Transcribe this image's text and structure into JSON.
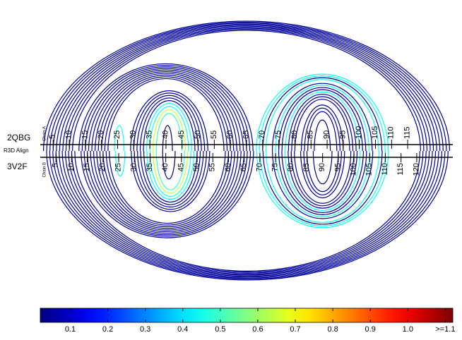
{
  "chart_data": {
    "type": "arc",
    "center_label": "R3D Align",
    "sequences": [
      {
        "name": "2QBG",
        "chain": "Chain A",
        "side": "top",
        "xlim": [
          1,
          129
        ],
        "xticks": [
          5,
          10,
          15,
          20,
          25,
          30,
          35,
          40,
          45,
          50,
          55,
          60,
          65,
          70,
          75,
          80,
          85,
          90,
          95,
          100,
          105,
          110,
          115
        ],
        "pairs": [
          [
            2,
            128,
            0.05
          ],
          [
            3,
            127,
            0.05
          ],
          [
            4,
            126,
            0.05
          ],
          [
            5,
            125,
            0.05
          ],
          [
            6,
            124,
            0.05
          ],
          [
            7,
            123,
            0.05
          ],
          [
            8,
            122,
            0.05
          ],
          [
            9,
            121,
            0.05
          ],
          [
            10,
            120,
            0.05
          ],
          [
            11,
            119,
            0.05
          ],
          [
            13,
            67,
            0.05
          ],
          [
            14,
            66,
            0.05
          ],
          [
            15,
            65,
            0.05
          ],
          [
            16,
            64,
            0.05
          ],
          [
            17,
            63,
            0.05
          ],
          [
            18,
            62,
            0.05
          ],
          [
            19,
            61,
            0.05
          ],
          [
            20,
            60,
            0.05
          ],
          [
            21,
            59,
            0.05
          ],
          [
            22,
            58,
            0.05
          ],
          [
            24,
            27,
            0.45
          ],
          [
            29,
            53,
            0.05
          ],
          [
            30,
            52,
            0.05
          ],
          [
            31,
            51,
            0.05
          ],
          [
            32,
            50,
            0.05
          ],
          [
            33,
            49,
            0.05
          ],
          [
            34,
            48,
            0.45
          ],
          [
            35,
            47,
            0.45
          ],
          [
            36,
            46,
            0.65
          ],
          [
            37,
            45,
            0.5
          ],
          [
            39,
            42,
            0.02
          ],
          [
            68,
            109,
            0.45
          ],
          [
            69,
            108,
            0.45
          ],
          [
            70,
            107,
            0.05
          ],
          [
            71,
            106,
            0.45
          ],
          [
            73,
            104,
            0.05
          ],
          [
            74,
            103,
            0.45
          ],
          [
            75,
            102,
            0.05
          ],
          [
            76,
            101,
            0.05
          ],
          [
            77,
            100,
            0.45
          ],
          [
            78,
            99,
            0.05
          ],
          [
            79,
            98,
            0.05
          ],
          [
            80,
            97,
            0.05
          ],
          [
            82,
            95,
            0.05
          ],
          [
            83,
            94,
            0.05
          ],
          [
            84,
            93,
            0.05
          ],
          [
            86,
            91,
            0.02
          ]
        ]
      },
      {
        "name": "3V2F",
        "chain": "Chain B",
        "side": "bottom",
        "xlim": [
          0,
          131.5
        ],
        "xticks": [
          5,
          10,
          15,
          20,
          25,
          30,
          35,
          40,
          45,
          50,
          55,
          60,
          65,
          70,
          75,
          80,
          85,
          90,
          95,
          100,
          105,
          110,
          115,
          120
        ],
        "pairs": [
          [
            2,
            130,
            0.05
          ],
          [
            3,
            129,
            0.05
          ],
          [
            4,
            128,
            0.05
          ],
          [
            5,
            127,
            0.05
          ],
          [
            6,
            126,
            0.05
          ],
          [
            7,
            125,
            0.05
          ],
          [
            8,
            124,
            0.05
          ],
          [
            9,
            123,
            0.05
          ],
          [
            10,
            122,
            0.05
          ],
          [
            11,
            121,
            0.05
          ],
          [
            13,
            68,
            0.05
          ],
          [
            14,
            67,
            0.05
          ],
          [
            15,
            66,
            0.05
          ],
          [
            16,
            65,
            0.05
          ],
          [
            17,
            64,
            0.05
          ],
          [
            18,
            63,
            0.05
          ],
          [
            19,
            62,
            0.05
          ],
          [
            20,
            61,
            0.05
          ],
          [
            21,
            60,
            0.05
          ],
          [
            22,
            59,
            0.05
          ],
          [
            24,
            27,
            0.45
          ],
          [
            29,
            54,
            0.05
          ],
          [
            30,
            53,
            0.05
          ],
          [
            31,
            52,
            0.05
          ],
          [
            32,
            51,
            0.05
          ],
          [
            33,
            50,
            0.05
          ],
          [
            34,
            49,
            0.45
          ],
          [
            35,
            48,
            0.45
          ],
          [
            36,
            47,
            0.65
          ],
          [
            37,
            46,
            0.5
          ],
          [
            39,
            43,
            0.02
          ],
          [
            69,
            111,
            0.45
          ],
          [
            70,
            110,
            0.45
          ],
          [
            71,
            109,
            0.05
          ],
          [
            72,
            108,
            0.45
          ],
          [
            74,
            106,
            0.05
          ],
          [
            75,
            105,
            0.45
          ],
          [
            76,
            104,
            0.05
          ],
          [
            77,
            103,
            0.05
          ],
          [
            78,
            102,
            0.45
          ],
          [
            79,
            101,
            0.05
          ],
          [
            80,
            100,
            0.05
          ],
          [
            81,
            99,
            0.05
          ],
          [
            83,
            97,
            0.05
          ],
          [
            84,
            96,
            0.05
          ],
          [
            85,
            95,
            0.05
          ],
          [
            87,
            93,
            0.02
          ]
        ]
      }
    ],
    "colorbar": {
      "clim": [
        0.02,
        1.12
      ],
      "ticks": [
        0.1,
        0.2,
        0.3,
        0.4,
        0.5,
        0.6,
        0.7,
        0.8,
        0.9,
        {
          "value": 1,
          "label": "1.0"
        },
        {
          "value": 1.1,
          "label": ">=1.1"
        }
      ]
    }
  }
}
